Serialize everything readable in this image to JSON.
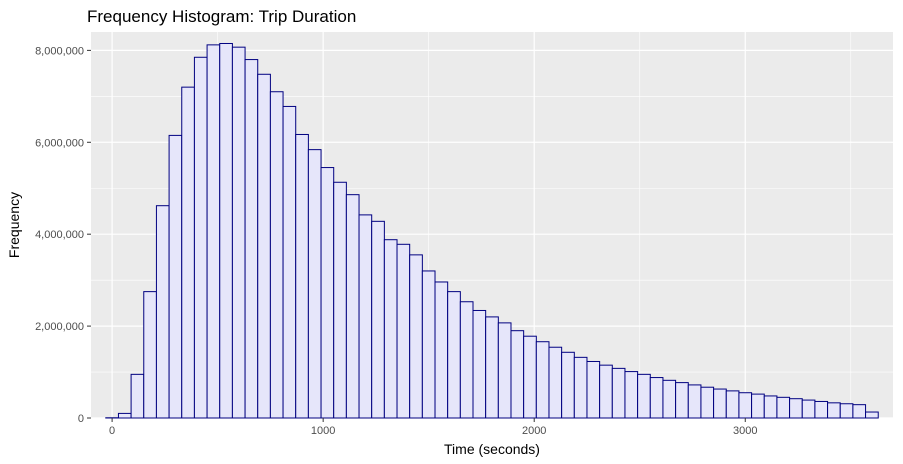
{
  "chart_data": {
    "type": "bar",
    "title": "Frequency Histogram: Trip Duration",
    "xlabel": "Time (seconds)",
    "ylabel": "Frequency",
    "xlim": [
      -100,
      3700
    ],
    "ylim": [
      0,
      8400000
    ],
    "x_ticks": [
      0,
      1000,
      2000,
      3000
    ],
    "x_minor_ticks": [
      500,
      1500,
      2500,
      3500
    ],
    "y_ticks": [
      0,
      2000000,
      4000000,
      6000000,
      8000000
    ],
    "y_tick_labels": [
      "0",
      "2,000,000",
      "4,000,000",
      "6,000,000",
      "8,000,000"
    ],
    "y_minor_ticks": [
      1000000,
      3000000,
      5000000,
      7000000
    ],
    "bin_width": 60,
    "bin_starts": [
      -30,
      30,
      90,
      150,
      210,
      270,
      330,
      390,
      450,
      510,
      570,
      630,
      690,
      750,
      810,
      870,
      930,
      990,
      1050,
      1110,
      1170,
      1230,
      1290,
      1350,
      1410,
      1470,
      1530,
      1590,
      1650,
      1710,
      1770,
      1830,
      1890,
      1950,
      2010,
      2070,
      2130,
      2190,
      2250,
      2310,
      2370,
      2430,
      2490,
      2550,
      2610,
      2670,
      2730,
      2790,
      2850,
      2910,
      2970,
      3030,
      3090,
      3150,
      3210,
      3270,
      3330,
      3390,
      3450,
      3510,
      3570
    ],
    "values": [
      5000,
      100000,
      950000,
      2750000,
      4620000,
      6150000,
      7200000,
      7850000,
      8120000,
      8150000,
      8070000,
      7800000,
      7480000,
      7100000,
      6780000,
      6170000,
      5840000,
      5450000,
      5130000,
      4860000,
      4420000,
      4280000,
      3880000,
      3780000,
      3550000,
      3200000,
      2960000,
      2750000,
      2530000,
      2340000,
      2200000,
      2070000,
      1900000,
      1780000,
      1660000,
      1540000,
      1430000,
      1320000,
      1230000,
      1150000,
      1080000,
      1010000,
      950000,
      880000,
      820000,
      770000,
      720000,
      670000,
      630000,
      590000,
      550000,
      520000,
      480000,
      450000,
      420000,
      390000,
      360000,
      330000,
      310000,
      290000,
      130000
    ],
    "bar_fill": "#e6e6fa",
    "bar_outline": "#000080",
    "panel_background": "#ebebeb",
    "grid_color": "#ffffff",
    "grid": true,
    "legend": "none"
  }
}
